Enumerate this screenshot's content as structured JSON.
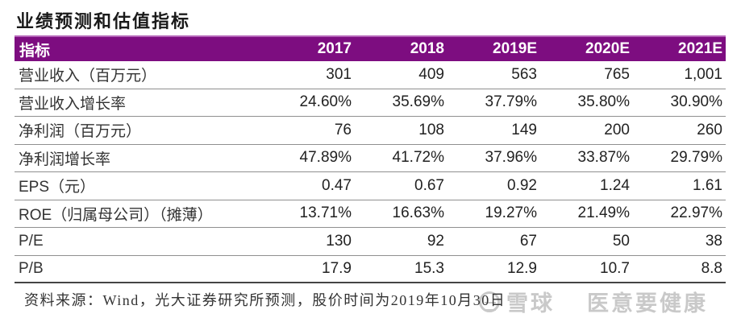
{
  "page": {
    "title": "业绩预测和估值指标"
  },
  "table": {
    "header": {
      "label": "指标",
      "years": [
        "2017",
        "2018",
        "2019E",
        "2020E",
        "2021E"
      ]
    },
    "rows": [
      {
        "label": "营业收入（百万元）",
        "values": [
          "301",
          "409",
          "563",
          "765",
          "1,001"
        ]
      },
      {
        "label": "营业收入增长率",
        "values": [
          "24.60%",
          "35.69%",
          "37.79%",
          "35.80%",
          "30.90%"
        ]
      },
      {
        "label": "净利润（百万元）",
        "values": [
          "76",
          "108",
          "149",
          "200",
          "260"
        ]
      },
      {
        "label": "净利润增长率",
        "values": [
          "47.89%",
          "41.72%",
          "37.96%",
          "33.87%",
          "29.79%"
        ]
      },
      {
        "label": "EPS（元）",
        "values": [
          "0.47",
          "0.67",
          "0.92",
          "1.24",
          "1.61"
        ]
      },
      {
        "label": "ROE（归属母公司）（摊薄）",
        "values": [
          "13.71%",
          "16.63%",
          "19.27%",
          "21.49%",
          "22.97%"
        ]
      },
      {
        "label": "P/E",
        "values": [
          "130",
          "92",
          "67",
          "50",
          "38"
        ]
      },
      {
        "label": "P/B",
        "values": [
          "17.9",
          "15.3",
          "12.9",
          "10.7",
          "8.8"
        ]
      }
    ]
  },
  "footer": {
    "source": "资料来源：Wind，光大证券研究所预测，股价时间为2019年10月30日"
  },
  "watermark": {
    "brand": "雪球",
    "user": "医意要健康"
  },
  "colors": {
    "header_bg": "#7d0d80",
    "header_edge": "#b565b8",
    "num_color": "#222222",
    "label_color": "#333333",
    "sep_color": "#8f8f8f",
    "bottom_border": "#444444",
    "footer_color": "#333333",
    "watermark": "#c9c9c9"
  }
}
